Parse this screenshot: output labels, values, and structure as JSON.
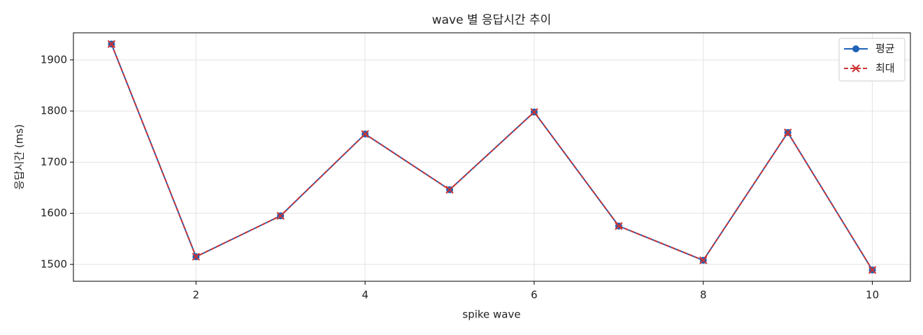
{
  "chart_data": {
    "type": "line",
    "title": "wave 별 응답시간 추이",
    "xlabel": "spike wave",
    "ylabel": "응답시간 (ms)",
    "x": [
      1,
      2,
      3,
      4,
      5,
      6,
      7,
      8,
      9,
      10
    ],
    "series": [
      {
        "name": "평균",
        "color": "#1f62b8",
        "marker": "o",
        "dash": false,
        "values": [
          1931,
          1515,
          1595,
          1755,
          1646,
          1798,
          1575,
          1508,
          1758,
          1489
        ]
      },
      {
        "name": "최대",
        "color": "#cc3333",
        "marker": "x",
        "dash": true,
        "values": [
          1931,
          1515,
          1595,
          1755,
          1646,
          1798,
          1575,
          1508,
          1758,
          1489
        ]
      }
    ],
    "xlim": [
      0.55,
      10.45
    ],
    "ylim": [
      1467,
      1953
    ],
    "xticks": [
      2,
      4,
      6,
      8,
      10
    ],
    "yticks": [
      1500,
      1600,
      1700,
      1800,
      1900
    ],
    "grid": true,
    "legend": "upper right"
  }
}
